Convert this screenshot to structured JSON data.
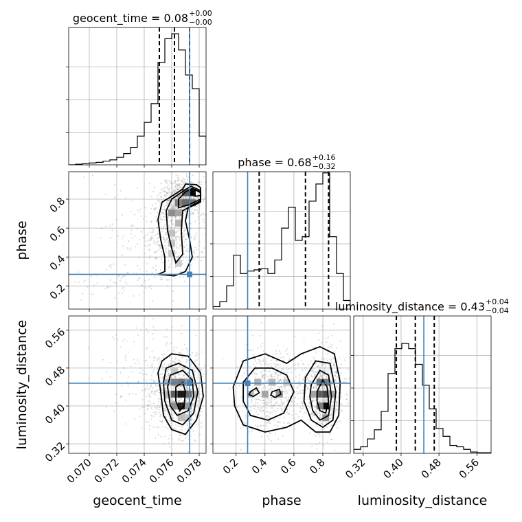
{
  "chart_data": {
    "type": "corner",
    "parameters": [
      {
        "key": "geocent_time",
        "label": "geocent_time",
        "range": [
          0.0685,
          0.0785
        ],
        "ticks": [
          "0.070",
          "0.072",
          "0.074",
          "0.076",
          "0.078"
        ],
        "tick_values": [
          0.07,
          0.072,
          0.074,
          0.076,
          0.078
        ],
        "median": 0.0762,
        "lower": 0.0751,
        "upper": 0.0773,
        "title": {
          "text": "geocent_time = 0.08",
          "plus": "+0.00",
          "minus": "−0.00"
        },
        "truth": 0.0773,
        "hist": {
          "edges_start": 0.0685,
          "bin_width": 0.0005,
          "values": [
            0,
            0.5,
            1,
            1.5,
            2,
            3,
            4,
            6,
            9,
            14,
            23,
            34,
            49,
            82,
            101,
            105,
            92,
            72,
            61,
            23
          ]
        },
        "hist_ymax": 110
      },
      {
        "key": "phase",
        "label": "phase",
        "range": [
          0.04,
          0.99
        ],
        "ticks": [
          "0.2",
          "0.4",
          "0.6",
          "0.8"
        ],
        "tick_values": [
          0.2,
          0.4,
          0.6,
          0.8
        ],
        "median": 0.68,
        "lower": 0.36,
        "upper": 0.84,
        "title": {
          "text": "phase = 0.68",
          "plus": "+0.16",
          "minus": "−0.32"
        },
        "truth": 0.28,
        "hist": {
          "edges_start": 0.04,
          "bin_width": 0.0475,
          "values": [
            2,
            6,
            19,
            44,
            29,
            31,
            32,
            33,
            29,
            40,
            66,
            83,
            56,
            59,
            88,
            102,
            111,
            59,
            29,
            7
          ]
        },
        "hist_ymax": 112
      },
      {
        "key": "luminosity_distance",
        "label": "luminosity_distance",
        "range": [
          0.3,
          0.59
        ],
        "ticks": [
          "0.32",
          "0.40",
          "0.48",
          "0.56"
        ],
        "tick_values": [
          0.32,
          0.4,
          0.48,
          0.56
        ],
        "median": 0.43,
        "lower": 0.39,
        "upper": 0.47,
        "title": {
          "text": "luminosity_distance = 0.43",
          "plus": "+0.04",
          "minus": "−0.04"
        },
        "truth": 0.448,
        "hist": {
          "edges_start": 0.3,
          "bin_width": 0.0145,
          "values": [
            3,
            5,
            11,
            18,
            32,
            61,
            80,
            84,
            80,
            68,
            52,
            34,
            19,
            13,
            6,
            5,
            3,
            1,
            0.5,
            0.5
          ]
        },
        "hist_ymax": 105
      }
    ],
    "pair_panels": [
      {
        "x": 0,
        "y": 1,
        "samples": {
          "seed": 7,
          "clusters": [
            {
              "n": 620,
              "mx": 0.0767,
              "sx": 0.0007,
              "my": 0.8,
              "sy": 0.07
            },
            {
              "n": 300,
              "mx": 0.0762,
              "sx": 0.0011,
              "my": 0.52,
              "sy": 0.13
            },
            {
              "n": 160,
              "mx": 0.0748,
              "sx": 0.002,
              "my": 0.62,
              "sy": 0.2
            },
            {
              "n": 70,
              "mx": 0.0725,
              "sx": 0.002,
              "my": 0.22,
              "sy": 0.06
            }
          ]
        },
        "density_cells": [
          {
            "x": 0.0775,
            "y": 0.845,
            "d": 0.95
          },
          {
            "x": 0.077,
            "y": 0.845,
            "d": 0.6
          },
          {
            "x": 0.077,
            "y": 0.775,
            "d": 0.55
          },
          {
            "x": 0.0765,
            "y": 0.775,
            "d": 0.45
          },
          {
            "x": 0.0775,
            "y": 0.775,
            "d": 0.5
          },
          {
            "x": 0.076,
            "y": 0.705,
            "d": 0.4
          },
          {
            "x": 0.0765,
            "y": 0.705,
            "d": 0.3
          },
          {
            "x": 0.0765,
            "y": 0.635,
            "d": 0.22
          },
          {
            "x": 0.076,
            "y": 0.565,
            "d": 0.18
          },
          {
            "x": 0.076,
            "y": 0.495,
            "d": 0.16
          },
          {
            "x": 0.076,
            "y": 0.425,
            "d": 0.14
          },
          {
            "x": 0.0765,
            "y": 0.355,
            "d": 0.12
          }
        ],
        "contours": [
          [
            [
              0.0781,
              0.88
            ],
            [
              0.0778,
              0.9
            ],
            [
              0.077,
              0.905
            ],
            [
              0.0768,
              0.87
            ],
            [
              0.076,
              0.82
            ],
            [
              0.0753,
              0.78
            ],
            [
              0.075,
              0.66
            ],
            [
              0.0752,
              0.52
            ],
            [
              0.0755,
              0.4
            ],
            [
              0.0755,
              0.3
            ],
            [
              0.075,
              0.28
            ],
            [
              0.0762,
              0.27
            ],
            [
              0.077,
              0.3
            ],
            [
              0.0775,
              0.4
            ],
            [
              0.0773,
              0.52
            ],
            [
              0.077,
              0.65
            ],
            [
              0.0772,
              0.74
            ],
            [
              0.0781,
              0.78
            ]
          ],
          [
            [
              0.0781,
              0.86
            ],
            [
              0.0774,
              0.89
            ],
            [
              0.0769,
              0.86
            ],
            [
              0.076,
              0.8
            ],
            [
              0.0756,
              0.72
            ],
            [
              0.0757,
              0.58
            ],
            [
              0.076,
              0.46
            ],
            [
              0.0763,
              0.36
            ],
            [
              0.0768,
              0.42
            ],
            [
              0.0767,
              0.58
            ],
            [
              0.0768,
              0.72
            ],
            [
              0.0781,
              0.79
            ]
          ],
          [
            [
              0.0781,
              0.85
            ],
            [
              0.0775,
              0.875
            ],
            [
              0.077,
              0.85
            ],
            [
              0.0765,
              0.8
            ],
            [
              0.0765,
              0.74
            ],
            [
              0.0772,
              0.76
            ],
            [
              0.0781,
              0.8
            ]
          ],
          [
            [
              0.0781,
              0.845
            ],
            [
              0.0777,
              0.865
            ],
            [
              0.0774,
              0.84
            ],
            [
              0.0777,
              0.82
            ],
            [
              0.0781,
              0.825
            ]
          ]
        ]
      },
      {
        "x": 0,
        "y": 2,
        "samples": {
          "seed": 11,
          "clusters": [
            {
              "n": 760,
              "mx": 0.0765,
              "sx": 0.001,
              "my": 0.43,
              "sy": 0.045
            },
            {
              "n": 160,
              "mx": 0.0745,
              "sx": 0.0018,
              "my": 0.46,
              "sy": 0.06
            }
          ]
        },
        "density_cells": [
          {
            "x": 0.0767,
            "y": 0.425,
            "d": 0.9
          },
          {
            "x": 0.0767,
            "y": 0.4,
            "d": 0.85
          },
          {
            "x": 0.0762,
            "y": 0.425,
            "d": 0.6
          },
          {
            "x": 0.0772,
            "y": 0.425,
            "d": 0.55
          },
          {
            "x": 0.0762,
            "y": 0.45,
            "d": 0.45
          },
          {
            "x": 0.0767,
            "y": 0.45,
            "d": 0.5
          },
          {
            "x": 0.0772,
            "y": 0.45,
            "d": 0.35
          },
          {
            "x": 0.0772,
            "y": 0.4,
            "d": 0.35
          },
          {
            "x": 0.0762,
            "y": 0.4,
            "d": 0.4
          },
          {
            "x": 0.0757,
            "y": 0.45,
            "d": 0.22
          },
          {
            "x": 0.0757,
            "y": 0.425,
            "d": 0.2
          },
          {
            "x": 0.0777,
            "y": 0.425,
            "d": 0.2
          },
          {
            "x": 0.0762,
            "y": 0.475,
            "d": 0.15
          },
          {
            "x": 0.0767,
            "y": 0.375,
            "d": 0.2
          },
          {
            "x": 0.0772,
            "y": 0.375,
            "d": 0.15
          }
        ],
        "contours": [
          [
            [
              0.0753,
              0.495
            ],
            [
              0.076,
              0.51
            ],
            [
              0.0772,
              0.505
            ],
            [
              0.0781,
              0.47
            ],
            [
              0.0783,
              0.42
            ],
            [
              0.0778,
              0.37
            ],
            [
              0.077,
              0.34
            ],
            [
              0.076,
              0.35
            ],
            [
              0.0754,
              0.38
            ],
            [
              0.0752,
              0.43
            ],
            [
              0.075,
              0.47
            ]
          ],
          [
            [
              0.0756,
              0.48
            ],
            [
              0.0765,
              0.49
            ],
            [
              0.0775,
              0.475
            ],
            [
              0.0779,
              0.43
            ],
            [
              0.0776,
              0.385
            ],
            [
              0.0768,
              0.36
            ],
            [
              0.076,
              0.37
            ],
            [
              0.0755,
              0.41
            ],
            [
              0.0754,
              0.45
            ]
          ],
          [
            [
              0.0759,
              0.465
            ],
            [
              0.0768,
              0.475
            ],
            [
              0.0775,
              0.455
            ],
            [
              0.0776,
              0.42
            ],
            [
              0.0772,
              0.39
            ],
            [
              0.0764,
              0.38
            ],
            [
              0.0759,
              0.4
            ],
            [
              0.0757,
              0.44
            ]
          ],
          [
            [
              0.0763,
              0.44
            ],
            [
              0.0768,
              0.45
            ],
            [
              0.077,
              0.43
            ],
            [
              0.0769,
              0.4
            ],
            [
              0.0766,
              0.39
            ],
            [
              0.0763,
              0.41
            ]
          ]
        ]
      },
      {
        "x": 1,
        "y": 2,
        "samples": {
          "seed": 23,
          "clusters": [
            {
              "n": 560,
              "mx": 0.8,
              "sx": 0.07,
              "my": 0.43,
              "sy": 0.045
            },
            {
              "n": 380,
              "mx": 0.42,
              "sx": 0.1,
              "my": 0.43,
              "sy": 0.045
            },
            {
              "n": 150,
              "mx": 0.6,
              "sx": 0.14,
              "my": 0.43,
              "sy": 0.05
            }
          ]
        },
        "density_cells": [
          {
            "x": 0.82,
            "y": 0.4,
            "d": 0.95
          },
          {
            "x": 0.82,
            "y": 0.425,
            "d": 0.7
          },
          {
            "x": 0.78,
            "y": 0.425,
            "d": 0.6
          },
          {
            "x": 0.78,
            "y": 0.45,
            "d": 0.5
          },
          {
            "x": 0.82,
            "y": 0.45,
            "d": 0.45
          },
          {
            "x": 0.74,
            "y": 0.425,
            "d": 0.3
          },
          {
            "x": 0.86,
            "y": 0.425,
            "d": 0.3
          },
          {
            "x": 0.78,
            "y": 0.4,
            "d": 0.45
          },
          {
            "x": 0.82,
            "y": 0.375,
            "d": 0.35
          },
          {
            "x": 0.5,
            "y": 0.425,
            "d": 0.35
          },
          {
            "x": 0.4,
            "y": 0.425,
            "d": 0.3
          },
          {
            "x": 0.35,
            "y": 0.45,
            "d": 0.25
          },
          {
            "x": 0.45,
            "y": 0.45,
            "d": 0.22
          },
          {
            "x": 0.3,
            "y": 0.425,
            "d": 0.2
          },
          {
            "x": 0.55,
            "y": 0.45,
            "d": 0.15
          }
        ],
        "contours": [
          [
            [
              0.18,
              0.44
            ],
            [
              0.25,
              0.495
            ],
            [
              0.4,
              0.51
            ],
            [
              0.55,
              0.49
            ],
            [
              0.65,
              0.51
            ],
            [
              0.78,
              0.525
            ],
            [
              0.88,
              0.51
            ],
            [
              0.92,
              0.45
            ],
            [
              0.91,
              0.38
            ],
            [
              0.85,
              0.345
            ],
            [
              0.75,
              0.345
            ],
            [
              0.65,
              0.37
            ],
            [
              0.55,
              0.355
            ],
            [
              0.4,
              0.345
            ],
            [
              0.25,
              0.36
            ],
            [
              0.19,
              0.4
            ]
          ],
          [
            [
              0.25,
              0.45
            ],
            [
              0.33,
              0.48
            ],
            [
              0.45,
              0.48
            ],
            [
              0.55,
              0.465
            ],
            [
              0.6,
              0.43
            ],
            [
              0.53,
              0.385
            ],
            [
              0.42,
              0.37
            ],
            [
              0.3,
              0.38
            ],
            [
              0.25,
              0.41
            ]
          ],
          [
            [
              0.68,
              0.46
            ],
            [
              0.75,
              0.495
            ],
            [
              0.85,
              0.49
            ],
            [
              0.89,
              0.43
            ],
            [
              0.87,
              0.37
            ],
            [
              0.8,
              0.355
            ],
            [
              0.72,
              0.37
            ],
            [
              0.67,
              0.41
            ]
          ],
          [
            [
              0.72,
              0.445
            ],
            [
              0.78,
              0.475
            ],
            [
              0.84,
              0.465
            ],
            [
              0.86,
              0.42
            ],
            [
              0.84,
              0.38
            ],
            [
              0.78,
              0.37
            ],
            [
              0.73,
              0.39
            ],
            [
              0.71,
              0.42
            ]
          ],
          [
            [
              0.76,
              0.43
            ],
            [
              0.8,
              0.455
            ],
            [
              0.83,
              0.44
            ],
            [
              0.84,
              0.41
            ],
            [
              0.82,
              0.385
            ],
            [
              0.78,
              0.39
            ],
            [
              0.76,
              0.41
            ]
          ],
          [
            [
              0.45,
              0.43
            ],
            [
              0.5,
              0.435
            ],
            [
              0.51,
              0.425
            ],
            [
              0.47,
              0.418
            ],
            [
              0.44,
              0.423
            ]
          ],
          [
            [
              0.3,
              0.43
            ],
            [
              0.34,
              0.438
            ],
            [
              0.36,
              0.428
            ],
            [
              0.32,
              0.42
            ],
            [
              0.29,
              0.424
            ]
          ]
        ]
      }
    ]
  }
}
